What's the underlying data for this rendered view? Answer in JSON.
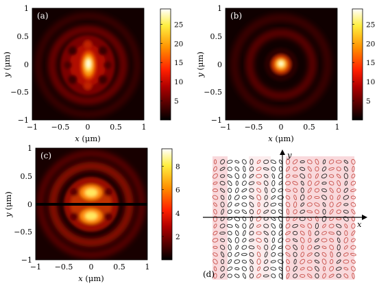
{
  "chart_data": [
    {
      "type": "heatmap",
      "panel_label": "(a)",
      "xlabel_italic": "x",
      "xlabel_unit": " (μm)",
      "ylabel_italic": "y",
      "ylabel_unit": " (μm)",
      "xlim": [
        -1,
        1
      ],
      "ylim": [
        -1,
        1
      ],
      "x_ticks": [
        "−1",
        "−0.5",
        "0",
        "0.5",
        "1"
      ],
      "y_ticks": [
        "1",
        "0.5",
        "0",
        "−0.5",
        "−1"
      ],
      "colorbar_ticks": [
        5,
        10,
        15,
        20,
        25
      ],
      "colorbar_range": [
        0,
        29
      ],
      "colormap": "hot",
      "pattern": "vertical elongated central peak near (0, 0) with a ring of weaker lobes at radius ≈ 0.35 μm"
    },
    {
      "type": "heatmap",
      "panel_label": "(b)",
      "xlabel_italic": "x",
      "xlabel_unit": " (μm)",
      "ylabel_italic": "y",
      "ylabel_unit": " (μm)",
      "xlim": [
        -1,
        1
      ],
      "ylim": [
        -1,
        1
      ],
      "x_ticks": [
        "−1",
        "−0.5",
        "0",
        "0.5",
        "1"
      ],
      "y_ticks": [
        "1",
        "0.5",
        "0",
        "−0.5",
        "−1"
      ],
      "colorbar_ticks": [
        5,
        10,
        15,
        20,
        25
      ],
      "colorbar_range": [
        0,
        29
      ],
      "colormap": "hot",
      "pattern": "compact circular central peak with concentric faint rings"
    },
    {
      "type": "heatmap",
      "panel_label": "(c)",
      "xlabel_italic": "x",
      "xlabel_unit": " (μm)",
      "ylabel_italic": "y",
      "ylabel_unit": " (μm)",
      "xlim": [
        -1,
        1
      ],
      "ylim": [
        -1,
        1
      ],
      "x_ticks": [
        "−1",
        "−0.5",
        "0",
        "0.5",
        "1"
      ],
      "y_ticks": [
        "1",
        "0.5",
        "0",
        "−0.5",
        "−1"
      ],
      "colorbar_ticks": [
        2,
        4,
        6,
        8
      ],
      "colorbar_range": [
        0,
        9.5
      ],
      "colormap": "hot",
      "pattern": "two bright lobes above and below a dark horizontal line at y = 0, surrounded by rings"
    },
    {
      "type": "other",
      "panel_label": "(d)",
      "x_axis_label": "x",
      "y_axis_label": "y",
      "description_kind": "polarization ellipse map",
      "colors": {
        "red_ellipse": "#c8504a",
        "black_ellipse": "#222222",
        "shade": "#f9d9dc"
      }
    }
  ]
}
